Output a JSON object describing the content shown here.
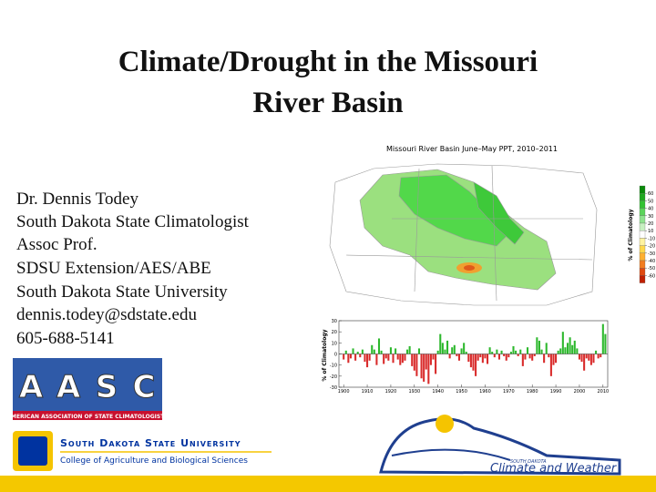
{
  "header": {
    "title_lines": [
      "Climate/Drought in the Missouri",
      "River Basin"
    ]
  },
  "contact": [
    "Dr. Dennis Todey",
    "South Dakota State Climatologist",
    "Assoc Prof.",
    "SDSU Extension/AES/ABE",
    "South Dakota State University",
    "dennis.todey@sdstate.edu",
    "605-688-5141"
  ],
  "map": {
    "title": "Missouri River Basin June–May PPT, 2010–2011",
    "legend": {
      "label": "% of Climatology",
      "ticks": [
        60,
        50,
        40,
        30,
        20,
        10,
        -10,
        -20,
        -30,
        -40,
        -50,
        -60
      ]
    }
  },
  "chart_data": {
    "type": "bar",
    "ylabel": "% of Climatology",
    "positive_color": "#2db82d",
    "negative_color": "#d92b2b",
    "x": [
      1900,
      1901,
      1902,
      1903,
      1904,
      1905,
      1906,
      1907,
      1908,
      1909,
      1910,
      1911,
      1912,
      1913,
      1914,
      1915,
      1916,
      1917,
      1918,
      1919,
      1920,
      1921,
      1922,
      1923,
      1924,
      1925,
      1926,
      1927,
      1928,
      1929,
      1930,
      1931,
      1932,
      1933,
      1934,
      1935,
      1936,
      1937,
      1938,
      1939,
      1940,
      1941,
      1942,
      1943,
      1944,
      1945,
      1946,
      1947,
      1948,
      1949,
      1950,
      1951,
      1952,
      1953,
      1954,
      1955,
      1956,
      1957,
      1958,
      1959,
      1960,
      1961,
      1962,
      1963,
      1964,
      1965,
      1966,
      1967,
      1968,
      1969,
      1970,
      1971,
      1972,
      1973,
      1974,
      1975,
      1976,
      1977,
      1978,
      1979,
      1980,
      1981,
      1982,
      1983,
      1984,
      1985,
      1986,
      1987,
      1988,
      1989,
      1990,
      1991,
      1992,
      1993,
      1994,
      1995,
      1996,
      1997,
      1998,
      1999,
      2000,
      2001,
      2002,
      2003,
      2004,
      2005,
      2006,
      2007,
      2008,
      2009,
      2010,
      2011
    ],
    "values": [
      -5,
      3,
      -8,
      -4,
      5,
      -6,
      2,
      -3,
      4,
      -7,
      -12,
      -6,
      8,
      4,
      -10,
      14,
      3,
      -9,
      -4,
      -6,
      6,
      -8,
      5,
      -5,
      -10,
      -8,
      -6,
      4,
      7,
      -11,
      -15,
      -20,
      5,
      -22,
      -25,
      -14,
      -27,
      -10,
      -5,
      -18,
      3,
      18,
      10,
      4,
      12,
      -4,
      6,
      8,
      -2,
      -6,
      5,
      10,
      2,
      -7,
      -12,
      -15,
      -20,
      -6,
      -3,
      -8,
      -4,
      -9,
      6,
      2,
      -3,
      4,
      -5,
      3,
      -2,
      -6,
      -3,
      2,
      7,
      3,
      -2,
      4,
      -11,
      -5,
      6,
      -4,
      -6,
      -2,
      15,
      12,
      4,
      -8,
      10,
      -3,
      -20,
      -10,
      -8,
      3,
      5,
      20,
      6,
      10,
      15,
      8,
      12,
      5,
      -5,
      -7,
      -15,
      -4,
      -6,
      -10,
      -8,
      3,
      -4,
      -3,
      27,
      18
    ],
    "xlim": [
      1898,
      2012
    ],
    "xticks": [
      1900,
      1910,
      1920,
      1930,
      1940,
      1950,
      1960,
      1970,
      1980,
      1990,
      2000,
      2010
    ],
    "ylim": [
      -30,
      30
    ],
    "yticks": [
      -30,
      -20,
      -10,
      0,
      10,
      20,
      30
    ]
  },
  "logos": {
    "aasc": {
      "letters": [
        "A",
        "A",
        "S",
        "C"
      ],
      "caption": "AMERICAN ASSOCIATION OF STATE CLIMATOLOGISTS"
    },
    "sdsu": {
      "name": "South Dakota State University",
      "college": "College of Agriculture and Biological Sciences"
    },
    "climate": {
      "small": "SOUTH DAKOTA",
      "name": "Climate and Weather"
    }
  }
}
